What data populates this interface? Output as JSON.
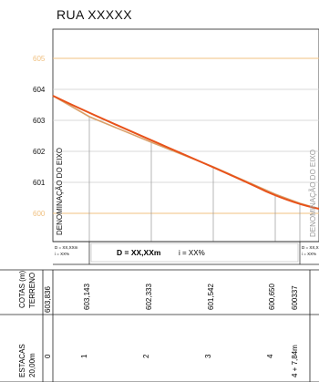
{
  "title": "RUA  XXXXX",
  "elevation_axis": {
    "labels": [
      "605",
      "604",
      "603",
      "602",
      "601",
      "600"
    ],
    "highlighted": [
      "605",
      "600"
    ]
  },
  "axis_label": "DENOMINAÇÃO DO EIXO",
  "grade_left": {
    "d": "D = XX,XXm",
    "i": "i = XX%"
  },
  "grade_main": {
    "d": "D = XX,XXm",
    "i": "i = XX%"
  },
  "grade_right": {
    "d": "D = XX,X",
    "i": "i = XX%"
  },
  "rows": {
    "terrain": {
      "header": "COTAS (m)",
      "sub": "TERRENO"
    },
    "stations": {
      "header": "ESTACAS",
      "sub": "20,00m"
    }
  },
  "stations": [
    {
      "station": "0",
      "terrain": "603,836"
    },
    {
      "station": "1",
      "terrain": "603,143"
    },
    {
      "station": "2",
      "terrain": "602,333"
    },
    {
      "station": "3",
      "terrain": "601,542"
    },
    {
      "station": "4",
      "terrain": "600,650"
    },
    {
      "station": "4 + 7,84m",
      "terrain": "600337"
    }
  ],
  "colors": {
    "grade_line": "#e8521a",
    "terrain_line": "#d9a06a",
    "highlight_grid": "#f0c080",
    "grid": "#cccccc"
  }
}
